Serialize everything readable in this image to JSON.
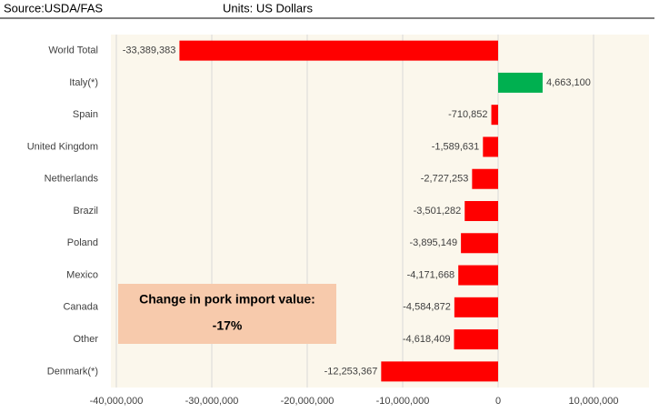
{
  "source": "Source:USDA/FAS",
  "units": "Units: US Dollars",
  "chart_data": {
    "type": "barh",
    "categories": [
      "World Total",
      "Italy(*)",
      "Spain",
      "United Kingdom",
      "Netherlands",
      "Brazil",
      "Poland",
      "Mexico",
      "Canada",
      "Other",
      "Denmark(*)"
    ],
    "values": [
      -33389383,
      4663100,
      -710852,
      -1589631,
      -2727253,
      -3501282,
      -3895149,
      -4171668,
      -4584872,
      -4618409,
      -12253367
    ],
    "value_labels": [
      "-33,389,383",
      "4,663,100",
      "-710,852",
      "-1,589,631",
      "-2,727,253",
      "-3,501,282",
      "-3,895,149",
      "-4,171,668",
      "-4,584,872",
      "-4,618,409",
      "-12,253,367"
    ],
    "colors": [
      "#ff0000",
      "#00b050",
      "#ff0000",
      "#ff0000",
      "#ff0000",
      "#ff0000",
      "#ff0000",
      "#ff0000",
      "#ff0000",
      "#ff0000",
      "#ff0000"
    ],
    "xlim": [
      -40000000,
      15000000
    ],
    "xticks": [
      {
        "value": -40000000,
        "label": "-40,000,000"
      },
      {
        "value": -30000000,
        "label": "-30,000,000"
      },
      {
        "value": -20000000,
        "label": "-20,000,000"
      },
      {
        "value": -10000000,
        "label": "-10,000,000"
      },
      0,
      {
        "value": 10000000,
        "label": "10,000,000"
      }
    ],
    "grid": true,
    "annotation": {
      "title": "Change in pork import value:",
      "value": "-17%"
    }
  }
}
